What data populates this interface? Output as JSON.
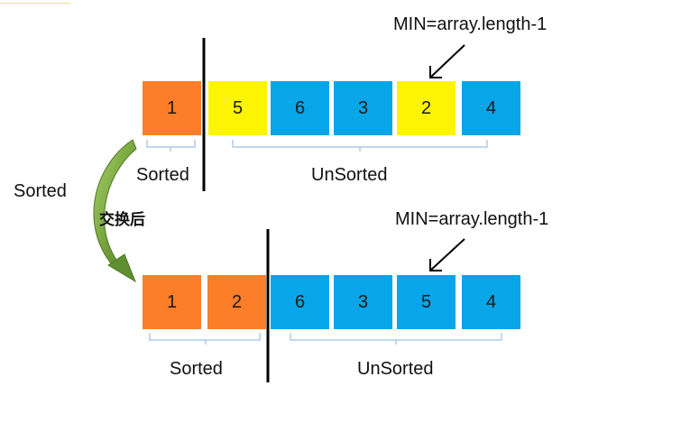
{
  "colors": {
    "sorted": "#fc7e28",
    "min": "#fdf404",
    "unsorted": "#06a6e8",
    "bracket": "#9dbfe4",
    "curve": "#5f8e2f",
    "curve_light": "#9fcc5c"
  },
  "before": {
    "cells": [
      {
        "value": "1",
        "state": "sorted"
      },
      {
        "value": "5",
        "state": "min"
      },
      {
        "value": "6",
        "state": "unsorted"
      },
      {
        "value": "3",
        "state": "unsorted"
      },
      {
        "value": "2",
        "state": "min"
      },
      {
        "value": "4",
        "state": "unsorted"
      }
    ],
    "min_label": "MIN=array.length-1",
    "sorted_label": "Sorted",
    "unsorted_label": "UnSorted"
  },
  "after": {
    "cells": [
      {
        "value": "1",
        "state": "sorted"
      },
      {
        "value": "2",
        "state": "sorted"
      },
      {
        "value": "6",
        "state": "unsorted"
      },
      {
        "value": "3",
        "state": "unsorted"
      },
      {
        "value": "5",
        "state": "unsorted"
      },
      {
        "value": "4",
        "state": "unsorted"
      }
    ],
    "min_label": "MIN=array.length-1",
    "sorted_label": "Sorted",
    "unsorted_label": "UnSorted"
  },
  "transition": {
    "side_label": "Sorted",
    "swap_label": "交换后"
  }
}
